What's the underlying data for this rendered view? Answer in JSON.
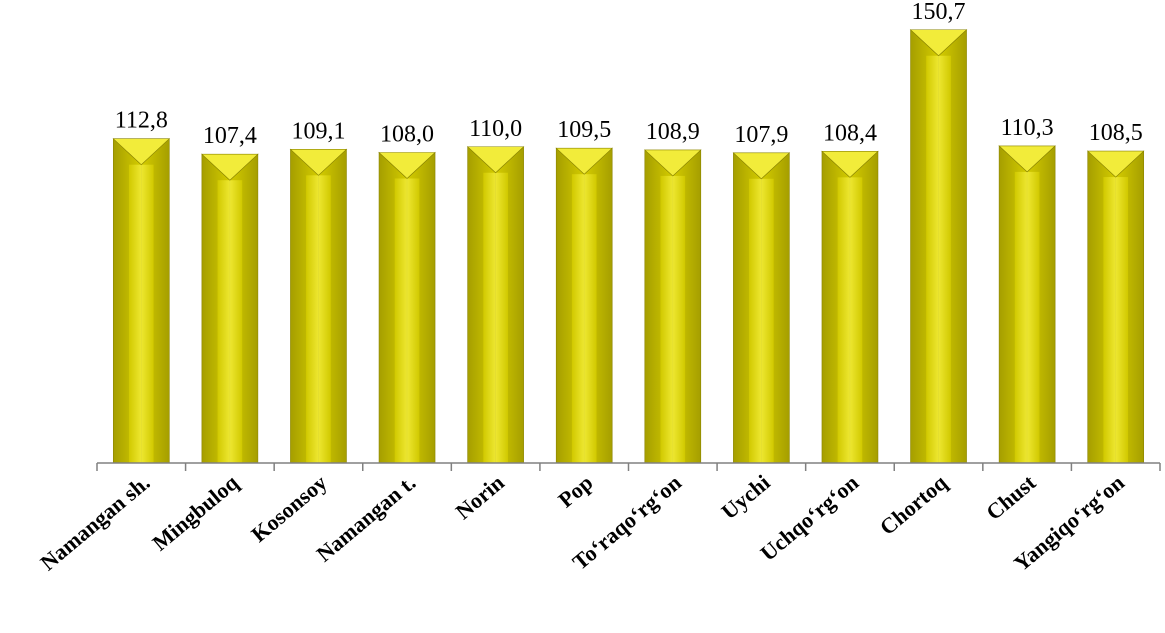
{
  "chart_data": {
    "type": "bar",
    "categories": [
      "Namangan sh.",
      "Mingbuloq",
      "Kosonsoy",
      "Namangan t.",
      "Norin",
      "Pop",
      "To‘raqo‘rg‘on",
      "Uychi",
      "Uchqo‘rg‘on",
      "Chortoq",
      "Chust",
      "Yangiqo‘rg‘on"
    ],
    "values": [
      112.8,
      107.4,
      109.1,
      108.0,
      110.0,
      109.5,
      108.9,
      107.9,
      108.4,
      150.7,
      110.3,
      108.5
    ],
    "value_labels": [
      "112,8",
      "107,4",
      "109,1",
      "108,0",
      "110,0",
      "109,5",
      "108,9",
      "107,9",
      "108,4",
      "150,7",
      "110,3",
      "108,5"
    ],
    "title": "",
    "xlabel": "",
    "ylabel": "",
    "ylim": [
      0,
      160
    ],
    "grid": false,
    "legend": "none",
    "bar_color": "#D4CC00",
    "bar_highlight": "#F2EC3A",
    "bar_shadow": "#A59E00"
  }
}
